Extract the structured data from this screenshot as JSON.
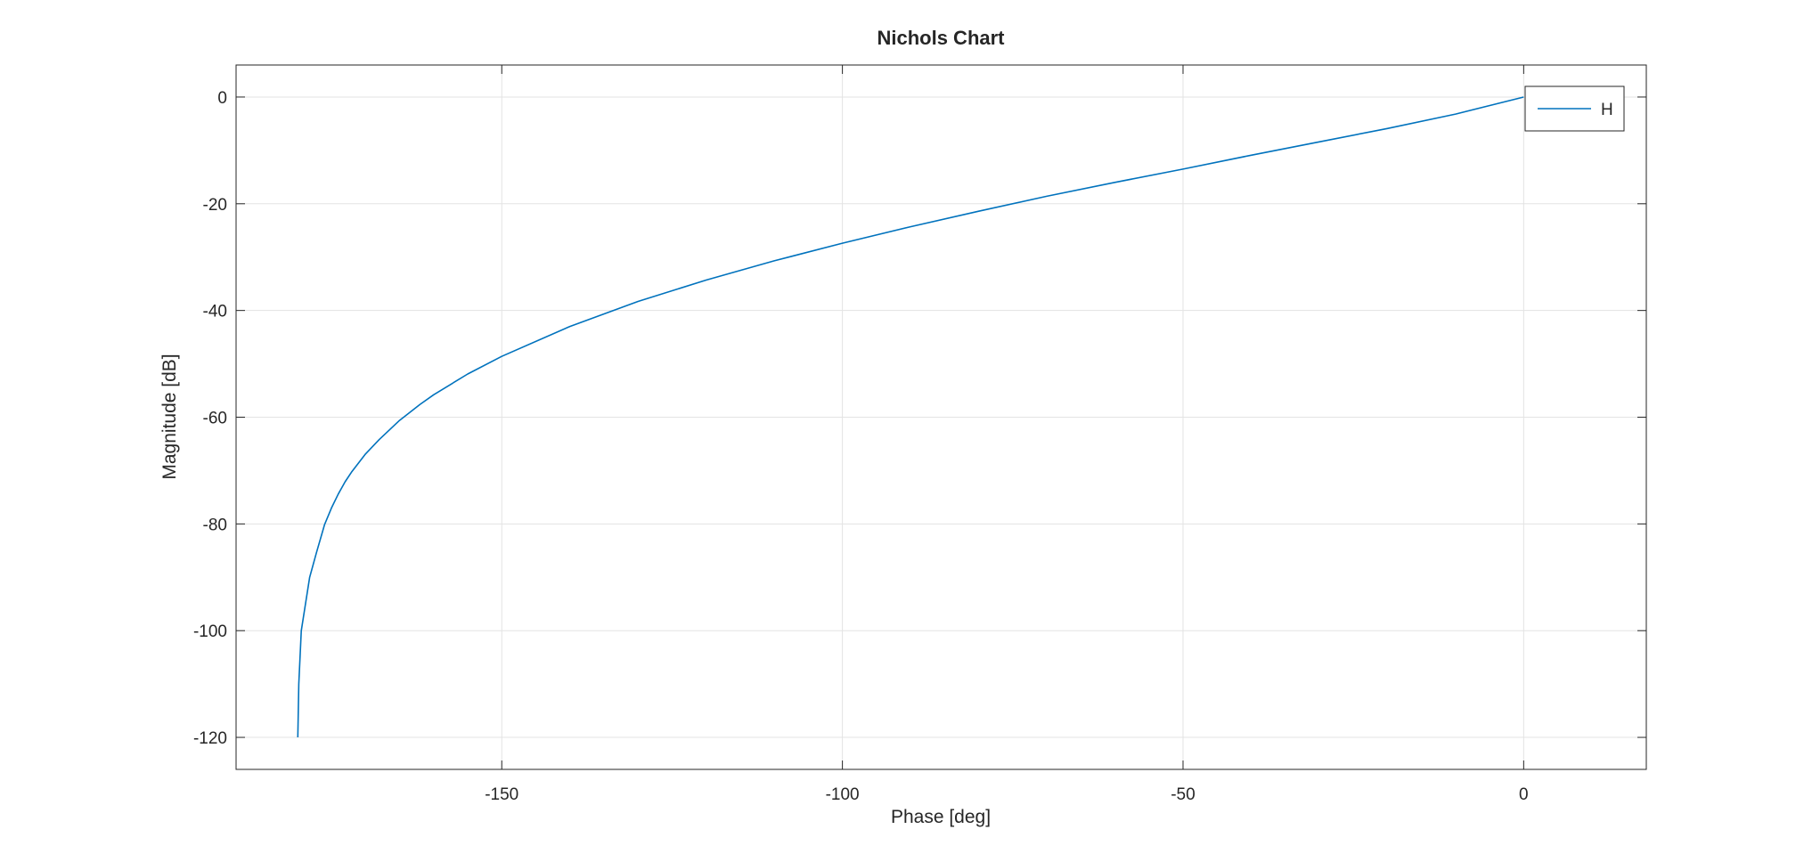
{
  "chart_data": {
    "type": "line",
    "title": "Nichols Chart",
    "xlabel": "Phase [deg]",
    "ylabel": "Magnitude [dB]",
    "xlim": [
      -189,
      18
    ],
    "ylim": [
      -126,
      6
    ],
    "xticks": [
      -150,
      -100,
      -50,
      0
    ],
    "yticks": [
      0,
      -20,
      -40,
      -60,
      -80,
      -100,
      -120
    ],
    "xtick_labels": [
      "-150",
      "-100",
      "-50",
      "0"
    ],
    "ytick_labels": [
      "0",
      "-20",
      "-40",
      "-60",
      "-80",
      "-100",
      "-120"
    ],
    "grid": true,
    "legend_position": "top-right",
    "line_color": "#0072bd",
    "series": [
      {
        "name": "H",
        "x": [
          -179.94,
          -179.8,
          -179.43,
          -178.2,
          -177.2,
          -176,
          -175,
          -174,
          -173,
          -172,
          -170,
          -168,
          -165,
          -162,
          -160,
          -155,
          -150,
          -140,
          -130,
          -120,
          -110,
          -100,
          -90,
          -80,
          -70,
          -60,
          -50,
          -40,
          -30,
          -20,
          -10,
          0
        ],
        "y": [
          -120,
          -110,
          -100,
          -90,
          -85.4,
          -80.1,
          -77,
          -74.4,
          -72.1,
          -70.2,
          -66.9,
          -64.2,
          -60.6,
          -57.6,
          -55.8,
          -51.9,
          -48.6,
          -43.0,
          -38.3,
          -34.3,
          -30.7,
          -27.4,
          -24.3,
          -21.4,
          -18.6,
          -16.0,
          -13.5,
          -10.9,
          -8.4,
          -5.9,
          -3.2,
          0
        ]
      }
    ]
  }
}
